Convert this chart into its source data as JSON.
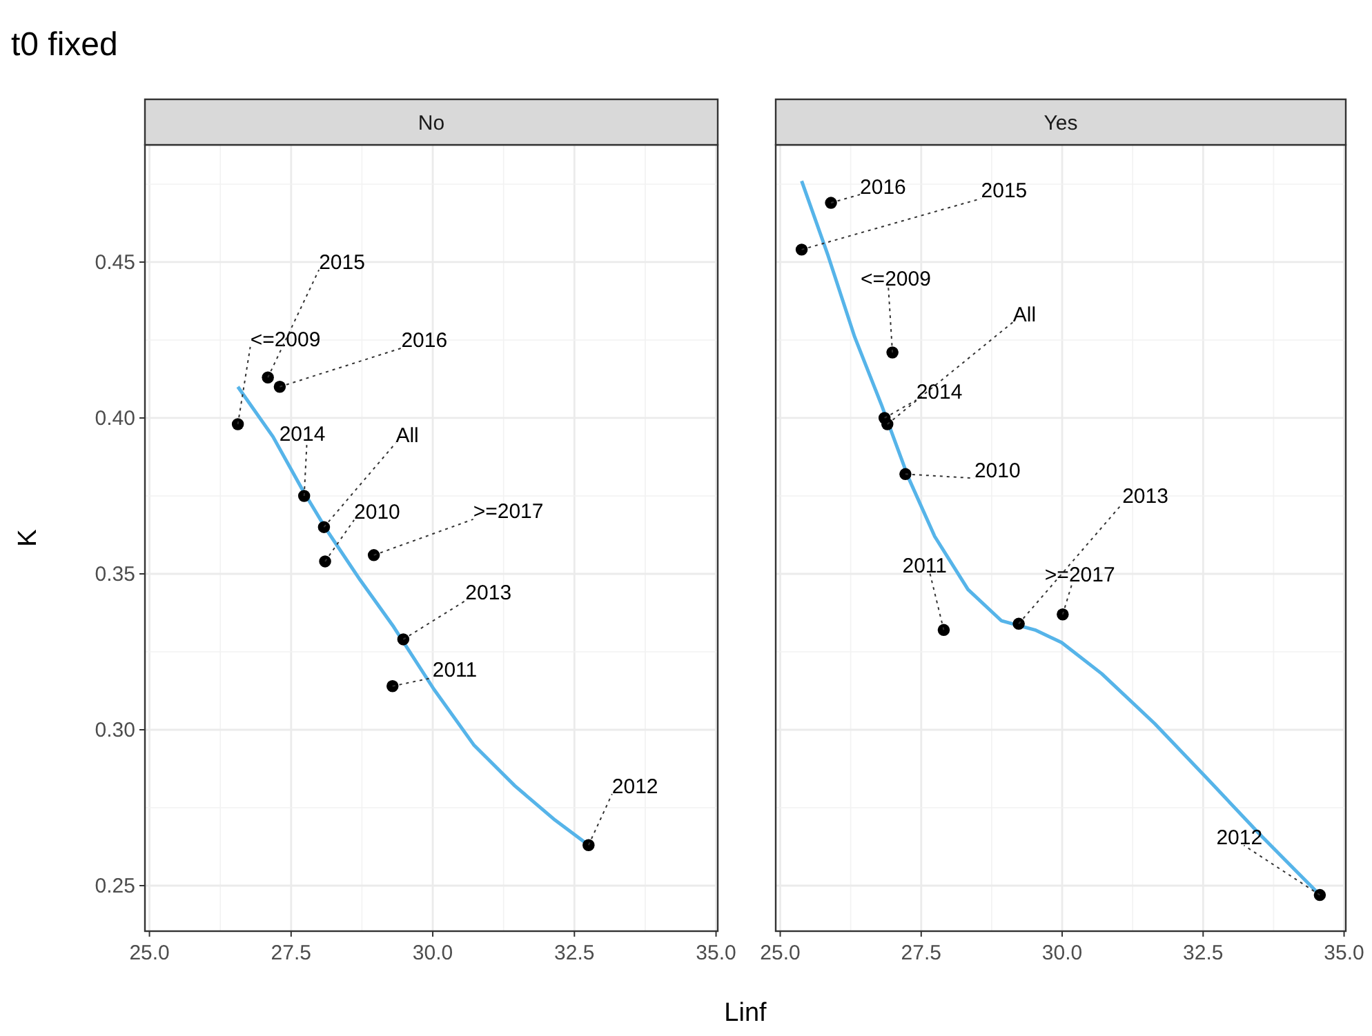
{
  "chart_data": [
    {
      "type": "scatter",
      "title": "t0 fixed",
      "subtitle": "No",
      "xlabel": "Linf",
      "ylabel": "K",
      "xlim": [
        24.92,
        35.03
      ],
      "xticks": [
        {
          "value": 25,
          "label": "25.0"
        },
        {
          "value": 27.5,
          "label": "27.5"
        },
        {
          "value": 30,
          "label": "30.0"
        },
        {
          "value": 32.5,
          "label": "32.5"
        },
        {
          "value": 35,
          "label": "35.0"
        }
      ],
      "ylim": [
        0.2354,
        0.4876
      ],
      "yticks": [
        {
          "value": 0.25,
          "label": "0.25"
        },
        {
          "value": 0.3,
          "label": "0.30"
        },
        {
          "value": 0.35,
          "label": "0.35"
        },
        {
          "value": 0.4,
          "label": "0.40"
        },
        {
          "value": 0.45,
          "label": "0.45"
        }
      ],
      "grid": true,
      "series": [
        {
          "marker": "circle",
          "color": "#000000",
          "x": [
            26.56,
            27.09,
            27.3,
            27.73,
            28.08,
            28.1,
            28.96,
            29.48,
            29.29,
            32.75
          ],
          "values": [
            0.398,
            0.413,
            0.41,
            0.375,
            0.365,
            0.354,
            0.356,
            0.329,
            0.314,
            0.263
          ]
        },
        {
          "type": "line",
          "color": "#56b4e9",
          "x": [
            26.56,
            27.18,
            27.7,
            28.13,
            28.72,
            29.31,
            30.02,
            30.73,
            31.45,
            32.16,
            32.75
          ],
          "values": [
            0.41,
            0.394,
            0.377,
            0.364,
            0.348,
            0.333,
            0.313,
            0.295,
            0.282,
            0.271,
            0.263
          ]
        }
      ],
      "annotations": [
        {
          "text": "<=2009",
          "x": 26.56,
          "y": 0.398
        },
        {
          "text": "2015",
          "x": 27.09,
          "y": 0.413
        },
        {
          "text": "2016",
          "x": 27.3,
          "y": 0.41
        },
        {
          "text": "2014",
          "x": 27.73,
          "y": 0.375
        },
        {
          "text": "All",
          "x": 28.08,
          "y": 0.365
        },
        {
          "text": "2010",
          "x": 28.1,
          "y": 0.354
        },
        {
          "text": ">=2017",
          "x": 28.96,
          "y": 0.356
        },
        {
          "text": "2013",
          "x": 29.48,
          "y": 0.329
        },
        {
          "text": "2011",
          "x": 29.29,
          "y": 0.314
        },
        {
          "text": "2012",
          "x": 32.75,
          "y": 0.263
        }
      ]
    },
    {
      "type": "scatter",
      "subtitle": "Yes",
      "xlim": [
        24.92,
        35.03
      ],
      "xticks": [
        {
          "value": 25,
          "label": "25.0"
        },
        {
          "value": 27.5,
          "label": "27.5"
        },
        {
          "value": 30,
          "label": "30.0"
        },
        {
          "value": 32.5,
          "label": "32.5"
        },
        {
          "value": 35,
          "label": "35.0"
        }
      ],
      "ylim": [
        0.2354,
        0.4876
      ],
      "yticks": [
        0.25,
        0.3,
        0.35,
        0.4,
        0.45
      ],
      "tick_labels": "x",
      "grid": true,
      "series": [
        {
          "marker": "circle",
          "color": "#000000",
          "x": [
            25.38,
            25.9,
            26.99,
            26.9,
            26.85,
            27.22,
            27.9,
            29.23,
            30.01,
            34.57
          ],
          "values": [
            0.454,
            0.469,
            0.421,
            0.398,
            0.4,
            0.382,
            0.332,
            0.334,
            0.337,
            0.247
          ]
        },
        {
          "type": "line",
          "color": "#56b4e9",
          "x": [
            25.38,
            25.85,
            26.32,
            26.8,
            27.27,
            27.74,
            28.33,
            28.92,
            29.52,
            29.99,
            30.7,
            31.64,
            32.59,
            33.53,
            34.57
          ],
          "values": [
            0.476,
            0.452,
            0.426,
            0.404,
            0.381,
            0.362,
            0.345,
            0.335,
            0.332,
            0.328,
            0.318,
            0.302,
            0.284,
            0.266,
            0.247
          ]
        }
      ],
      "annotations": [
        {
          "text": "2015",
          "x": 25.38,
          "y": 0.454
        },
        {
          "text": "2016",
          "x": 25.9,
          "y": 0.469
        },
        {
          "text": "<=2009",
          "x": 26.99,
          "y": 0.421
        },
        {
          "text": "All",
          "x": 26.9,
          "y": 0.398
        },
        {
          "text": "2014",
          "x": 26.85,
          "y": 0.4
        },
        {
          "text": "2010",
          "x": 27.22,
          "y": 0.382
        },
        {
          "text": "2011",
          "x": 27.9,
          "y": 0.332
        },
        {
          "text": "2013",
          "x": 29.23,
          "y": 0.334
        },
        {
          "text": ">=2017",
          "x": 30.01,
          "y": 0.337
        },
        {
          "text": "2012",
          "x": 34.57,
          "y": 0.247
        }
      ]
    }
  ]
}
